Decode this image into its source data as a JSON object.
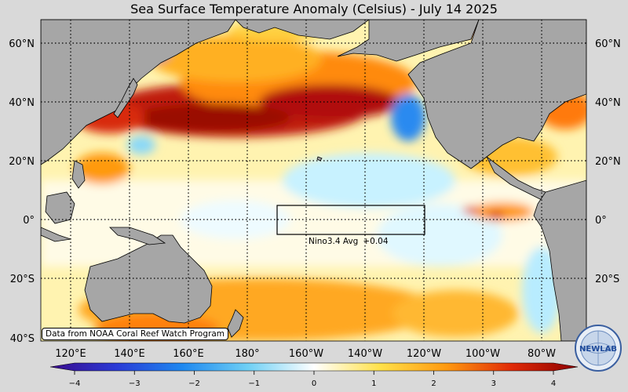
{
  "title": "Sea Surface Temperature Anomaly (Celsius) - July 14 2025",
  "latitude_labels": [
    "60°N",
    "40°N",
    "20°N",
    "0°",
    "20°S",
    "40°S"
  ],
  "longitude_labels": [
    "120°E",
    "140°E",
    "160°E",
    "180°",
    "160°W",
    "140°W",
    "120°W",
    "100°W",
    "80°W"
  ],
  "nino_box": {
    "label": "Nino3.4 Avg",
    "value": "+0.04"
  },
  "colorbar": {
    "min": -4,
    "max": 4,
    "tick_labels": [
      "−4",
      "−3",
      "−2",
      "−1",
      "0",
      "1",
      "2",
      "3",
      "4"
    ],
    "colors": [
      "#3a0a8c",
      "#2a3ad6",
      "#1e88f0",
      "#6fd0f5",
      "#ffffff",
      "#ffe14a",
      "#ff9a10",
      "#e02a08",
      "#8c0000"
    ]
  },
  "source_note": "Data from NOAA Coral Reef Watch Program",
  "logo_text": "NEWLAB",
  "colors": {
    "land": "#a6a6a6",
    "background": "#d9d9d9"
  }
}
